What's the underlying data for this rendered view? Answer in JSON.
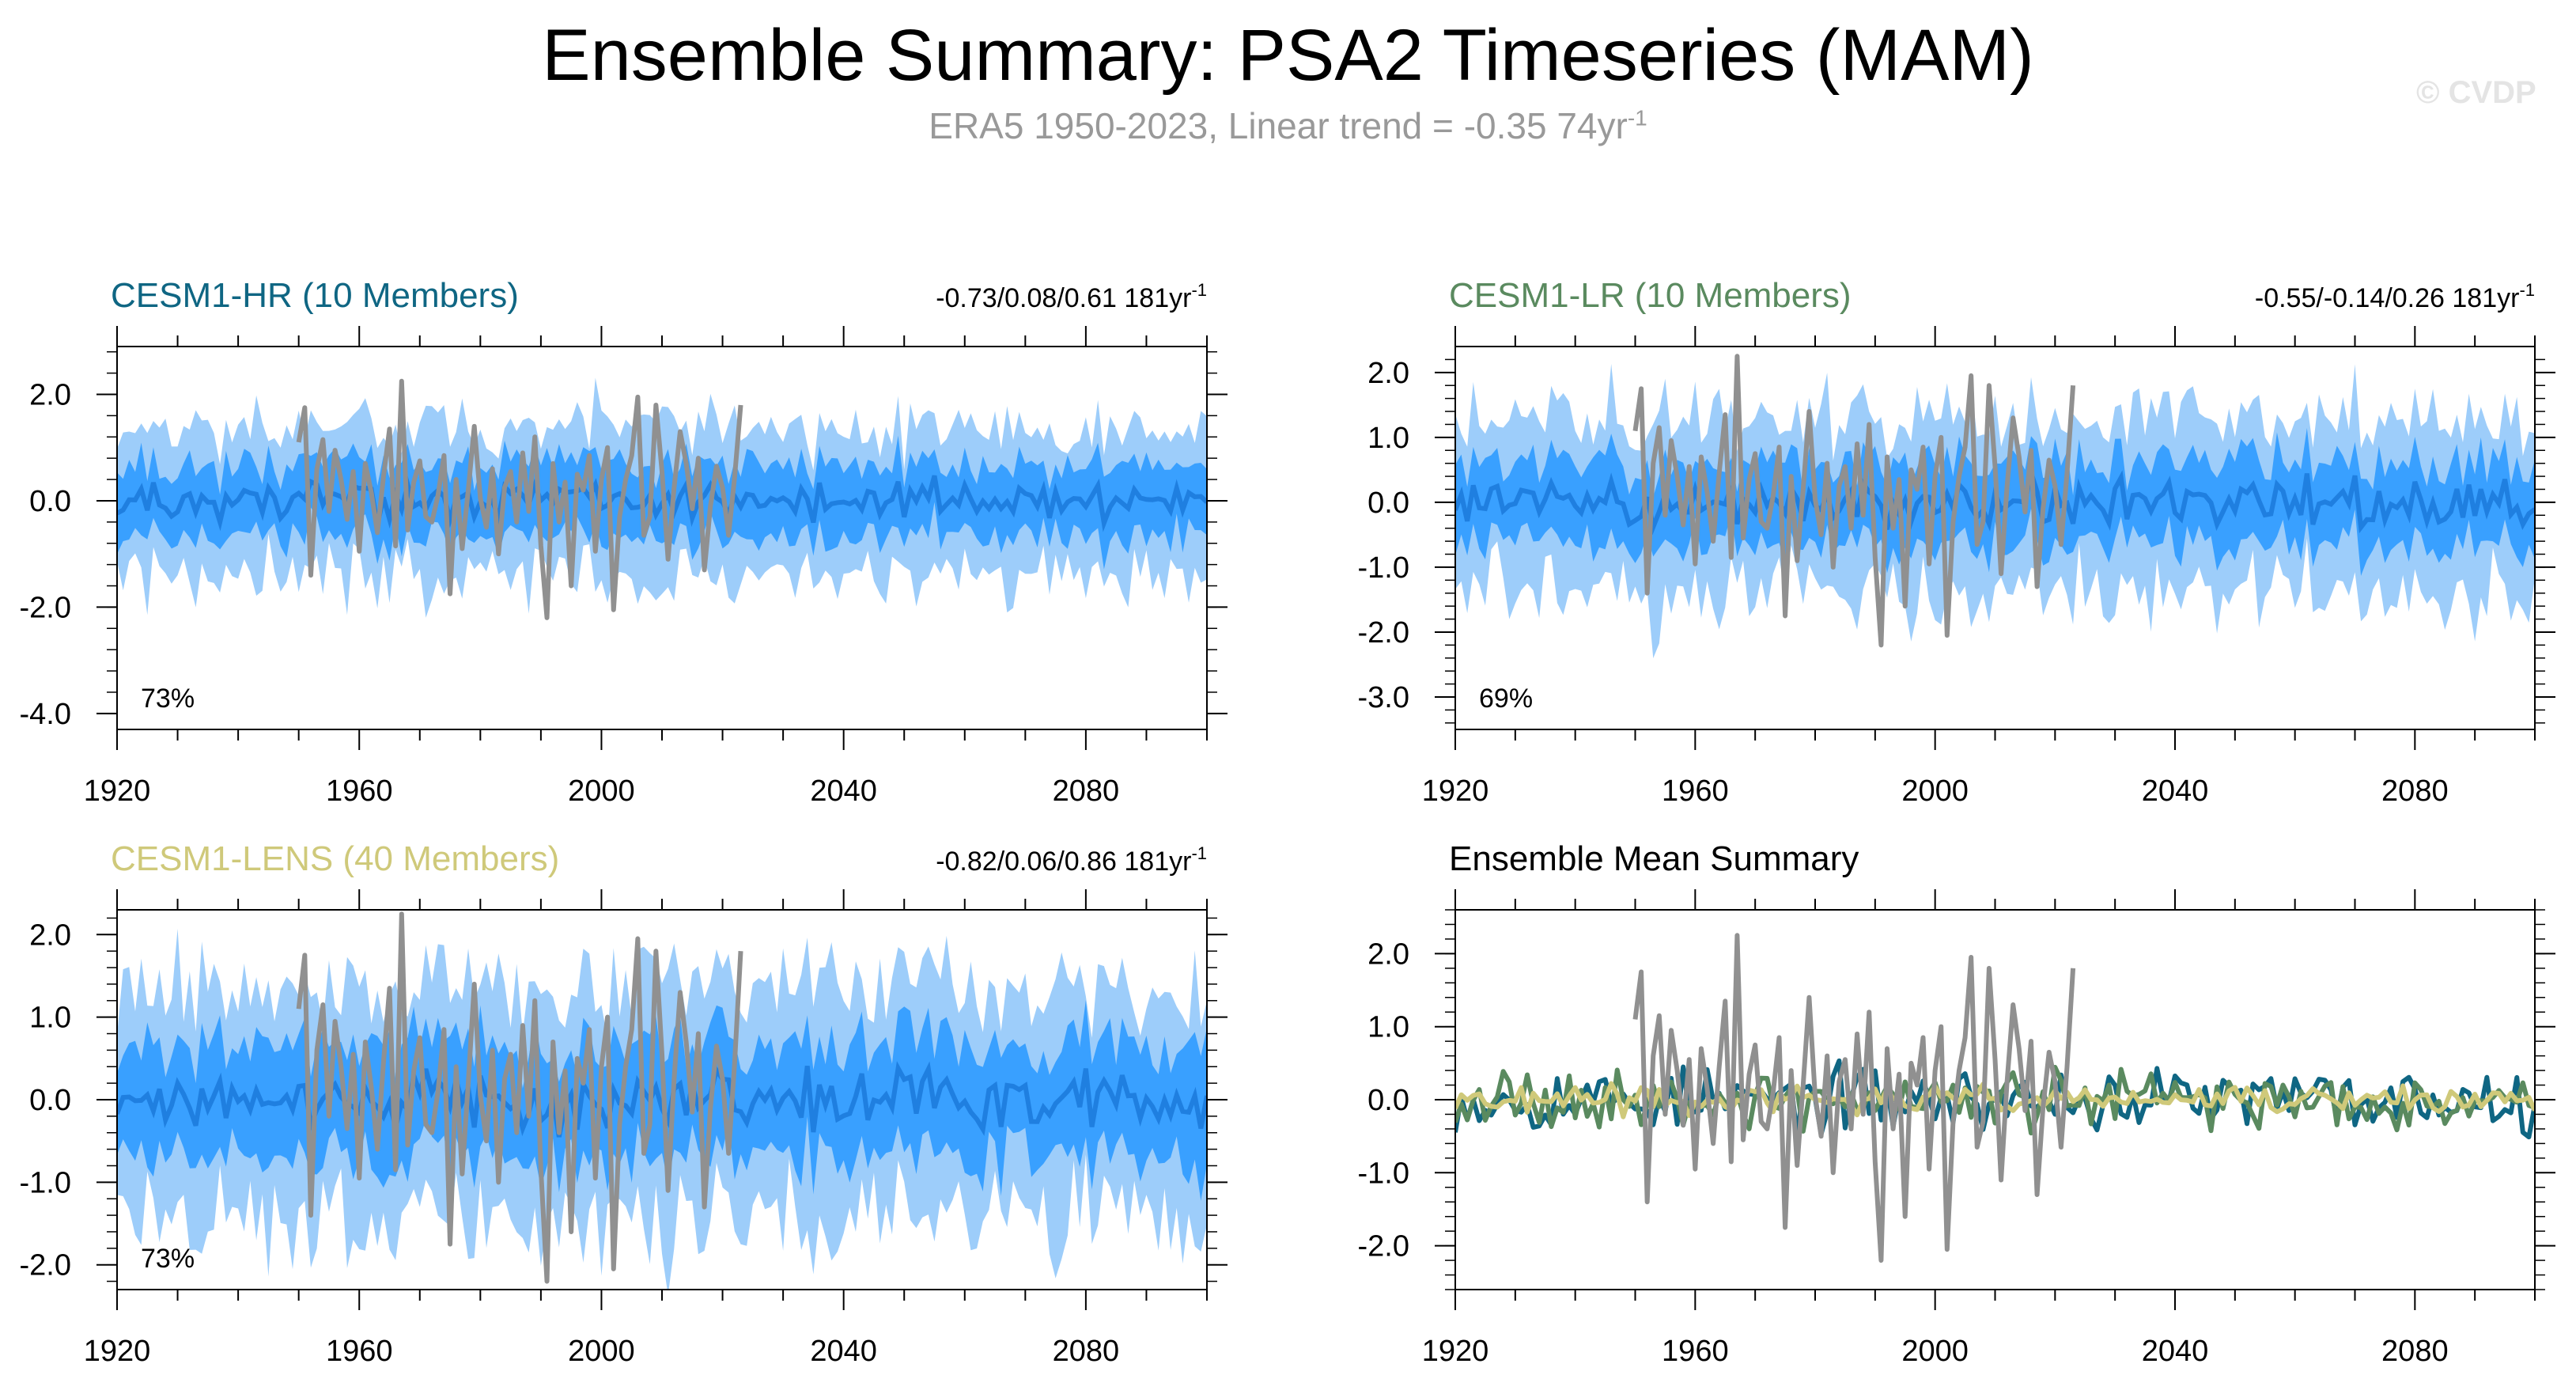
{
  "title": "Ensemble Summary: PSA2 Timeseries (MAM)",
  "subtitle": {
    "text": "ERA5 1950-2023, Linear trend = -0.35 74yr",
    "superscript": "-1"
  },
  "watermark": "© CVDP",
  "colors": {
    "outer_band": "#9dcdfa",
    "inner_band": "#39a0ff",
    "mean_line": "#1f7fe0",
    "obs_line": "#909090",
    "cesm1_hr": "#0f6683",
    "cesm1_lr": "#5a8a5f",
    "cesm1_lens": "#cfc97a"
  },
  "chart_data": [
    {
      "type": "area",
      "title": "CESM1-HR (10 Members)",
      "title_color": "#0f6683",
      "stats": "-0.73/0.08/0.61 181yr",
      "stats_superscript": "-1",
      "annotation": "73%",
      "x_range": [
        1920,
        2100
      ],
      "ylim": [
        -4.3,
        2.9
      ],
      "yticks": [
        -4.0,
        -2.0,
        0.0,
        2.0
      ],
      "ytick_labels": [
        "-4.0",
        "-2.0",
        "0.0",
        "2.0"
      ],
      "xticks": [
        1920,
        1960,
        2000,
        2040,
        2080
      ],
      "band_outer_sd": 1.35,
      "band_inner_sd": 0.68,
      "seed": 11,
      "obs_line": {
        "start": 1950,
        "end": 2023
      }
    },
    {
      "type": "area",
      "title": "CESM1-LR (10 Members)",
      "title_color": "#5a8a5f",
      "stats": "-0.55/-0.14/0.26 181yr",
      "stats_superscript": "-1",
      "annotation": "69%",
      "x_range": [
        1920,
        2100
      ],
      "ylim": [
        -3.5,
        2.4
      ],
      "yticks": [
        -3.0,
        -2.0,
        -1.0,
        0.0,
        1.0,
        2.0
      ],
      "ytick_labels": [
        "-3.0",
        "-2.0",
        "-1.0",
        "0.0",
        "1.0",
        "2.0"
      ],
      "xticks": [
        1920,
        1960,
        2000,
        2040,
        2080
      ],
      "band_outer_sd": 1.3,
      "band_inner_sd": 0.62,
      "seed": 23,
      "obs_line": {
        "start": 1950,
        "end": 2023
      }
    },
    {
      "type": "area",
      "title": "CESM1-LENS (40 Members)",
      "title_color": "#cfc97a",
      "stats": "-0.82/0.06/0.86 181yr",
      "stats_superscript": "-1",
      "annotation": "73%",
      "x_range": [
        1920,
        2100
      ],
      "ylim": [
        -2.3,
        2.3
      ],
      "yticks": [
        -2.0,
        -1.0,
        0.0,
        1.0,
        2.0
      ],
      "ytick_labels": [
        "-2.0",
        "-1.0",
        "0.0",
        "1.0",
        "2.0"
      ],
      "xticks": [
        1920,
        1960,
        2000,
        2040,
        2080
      ],
      "band_outer_sd": 1.35,
      "band_inner_sd": 0.68,
      "seed": 37,
      "obs_line": {
        "start": 1950,
        "end": 2023
      }
    },
    {
      "type": "line",
      "title": "Ensemble Mean Summary",
      "title_color": "#000000",
      "x_range": [
        1920,
        2100
      ],
      "ylim": [
        -2.6,
        2.6
      ],
      "yticks": [
        -2.0,
        -1.0,
        0.0,
        1.0,
        2.0
      ],
      "ytick_labels": [
        "-2.0",
        "-1.0",
        "0.0",
        "1.0",
        "2.0"
      ],
      "xticks": [
        1920,
        1960,
        2000,
        2040,
        2080
      ],
      "seed": 53,
      "series": [
        {
          "color_key": "cesm1_hr",
          "amp": 0.32,
          "start": 1920,
          "end": 2100
        },
        {
          "color_key": "cesm1_lr",
          "amp": 0.3,
          "start": 1920,
          "end": 2100
        },
        {
          "color_key": "cesm1_lens",
          "amp": 0.13,
          "start": 1920,
          "end": 2100
        }
      ],
      "obs_line": {
        "start": 1950,
        "end": 2023
      }
    }
  ],
  "obs_values": [
    1.1,
    1.75,
    -1.4,
    0.6,
    1.15,
    -0.2,
    0.95,
    0.4,
    -0.35,
    0.55,
    -0.95,
    0.7,
    0.15,
    -0.6,
    0.45,
    1.35,
    -0.85,
    2.25,
    -0.55,
    0.35,
    0.75,
    -0.3,
    -0.4,
    0.1,
    0.85,
    -1.75,
    0.4,
    -0.9,
    0.2,
    1.4,
    0.05,
    -0.5,
    0.6,
    -1.0,
    0.25,
    0.55,
    -0.4,
    0.9,
    -0.2,
    1.2,
    -0.85,
    -2.2,
    0.7,
    -0.4,
    0.35,
    -1.6,
    0.5,
    0.2,
    0.85,
    -0.95,
    0.4,
    1.0,
    -2.05,
    -0.3,
    0.4,
    0.85,
    1.95,
    -0.65,
    -0.3,
    1.8,
    0.55,
    -1.1,
    0.25,
    1.3,
    0.7,
    -0.15,
    0.8,
    -1.3,
    -0.1,
    0.65,
    0.25,
    -0.65,
    0.45,
    1.8
  ]
}
